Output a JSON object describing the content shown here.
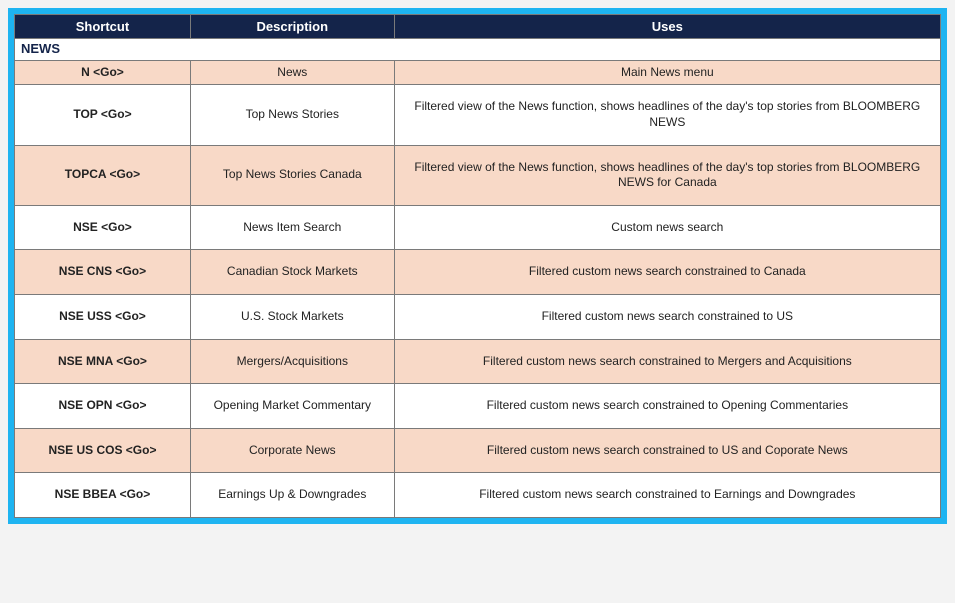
{
  "table": {
    "type": "table",
    "header_bg": "#14244a",
    "header_fg": "#ffffff",
    "border_color": "#7a7a7a",
    "alt_bg": "#f8d9c7",
    "frame_border": "#1eb4f1",
    "page_bg": "#f3f3f3",
    "font_family": "Segoe UI",
    "body_fontsize": 12,
    "header_fontsize": 13,
    "column_widths_pct": [
      19,
      22,
      59
    ],
    "columns": [
      "Shortcut",
      "Description",
      "Uses"
    ],
    "section": "NEWS",
    "rows": [
      {
        "shortcut": "N <Go>",
        "description": "News",
        "uses": "Main News menu",
        "alt": true,
        "compact": true
      },
      {
        "shortcut": "TOP <Go>",
        "description": "Top News Stories",
        "uses": "Filtered view of the News function, shows headlines of the day's top stories from BLOOMBERG NEWS",
        "alt": false
      },
      {
        "shortcut": "TOPCA <Go>",
        "description": "Top News Stories Canada",
        "uses": "Filtered view of the News function, shows headlines of the day's top stories from BLOOMBERG NEWS for Canada",
        "alt": true
      },
      {
        "shortcut": "NSE <Go>",
        "description": "News Item Search",
        "uses": "Custom news search",
        "alt": false
      },
      {
        "shortcut": "NSE CNS <Go>",
        "description": "Canadian Stock Markets",
        "uses": "Filtered custom news search constrained to Canada",
        "alt": true
      },
      {
        "shortcut": "NSE USS <Go>",
        "description": "U.S. Stock Markets",
        "uses": "Filtered custom news search constrained to US",
        "alt": false
      },
      {
        "shortcut": "NSE MNA <Go>",
        "description": "Mergers/Acquisitions",
        "uses": "Filtered custom news search constrained to Mergers and Acquisitions",
        "alt": true
      },
      {
        "shortcut": "NSE OPN <Go>",
        "description": "Opening Market Commentary",
        "uses": "Filtered custom news search constrained to Opening Commentaries",
        "alt": false
      },
      {
        "shortcut": "NSE US COS <Go>",
        "description": "Corporate News",
        "uses": "Filtered custom news search constrained to US and Coporate News",
        "alt": true
      },
      {
        "shortcut": "NSE BBEA <Go>",
        "description": "Earnings Up & Downgrades",
        "uses": "Filtered custom news search constrained to Earnings and Downgrades",
        "alt": false
      }
    ]
  }
}
